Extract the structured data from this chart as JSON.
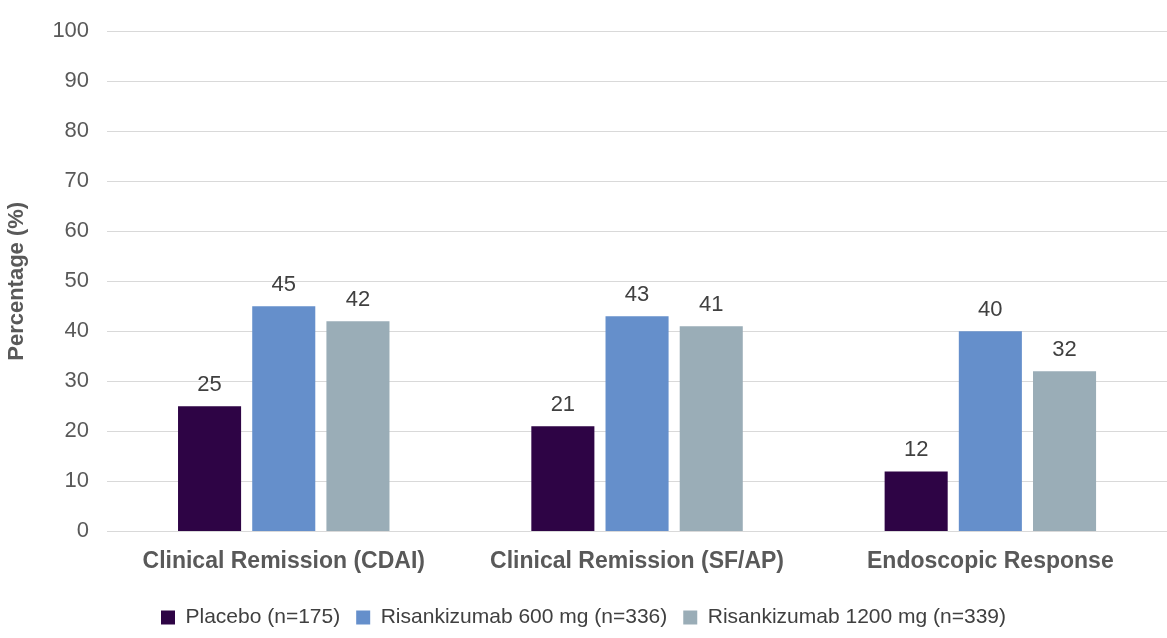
{
  "chart_data": {
    "type": "bar",
    "ylabel": "Percentage (%)",
    "categories": [
      "Clinical Remission (CDAI)",
      "Clinical Remission (SF/AP)",
      "Endoscopic Response"
    ],
    "series": [
      {
        "name": "Placebo (n=175)",
        "color": "#2e0445",
        "values": [
          25,
          21,
          12
        ]
      },
      {
        "name": "Risankizumab 600 mg (n=336)",
        "color": "#658fcb",
        "values": [
          45,
          43,
          40
        ]
      },
      {
        "name": "Risankizumab 1200 mg (n=339)",
        "color": "#9aadb7",
        "values": [
          42,
          41,
          32
        ]
      }
    ],
    "ylim": [
      0,
      100
    ],
    "yticks": [
      0,
      10,
      20,
      30,
      40,
      50,
      60,
      70,
      80,
      90,
      100
    ],
    "grid": "y",
    "legend": "bottom",
    "data_labels": true
  }
}
